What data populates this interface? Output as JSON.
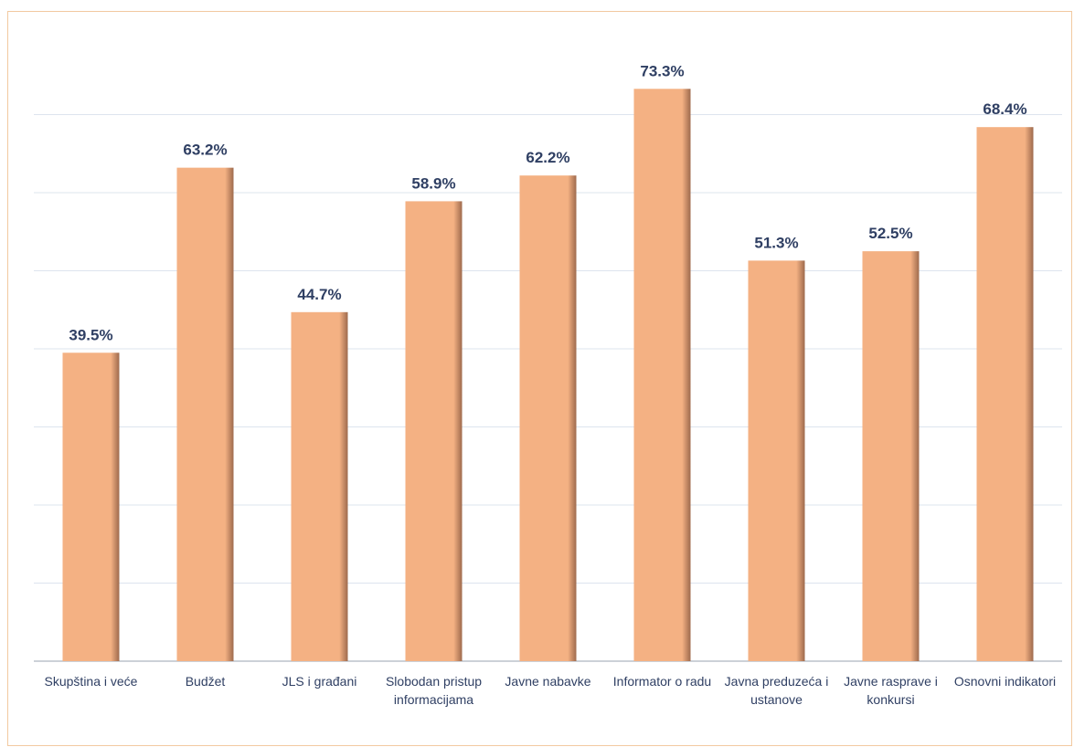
{
  "chart_data": {
    "type": "bar",
    "categories": [
      "Skupština i veće",
      "Budžet",
      "JLS i građani",
      "Slobodan pristup informacijama",
      "Javne nabavke",
      "Informator o radu",
      "Javna preduzeća i ustanove",
      "Javne rasprave i konkursi",
      "Osnovni indikatori"
    ],
    "values": [
      39.5,
      63.2,
      44.7,
      58.9,
      62.2,
      73.3,
      51.3,
      52.5,
      68.4
    ],
    "value_labels": [
      "39.5%",
      "63.2%",
      "44.7%",
      "58.9%",
      "62.2%",
      "73.3%",
      "51.3%",
      "52.5%",
      "68.4%"
    ],
    "color": "#f4b183",
    "ylim": [
      0,
      80
    ],
    "yticks": [
      0,
      10,
      20,
      30,
      40,
      50,
      60,
      70
    ],
    "grid": true
  }
}
